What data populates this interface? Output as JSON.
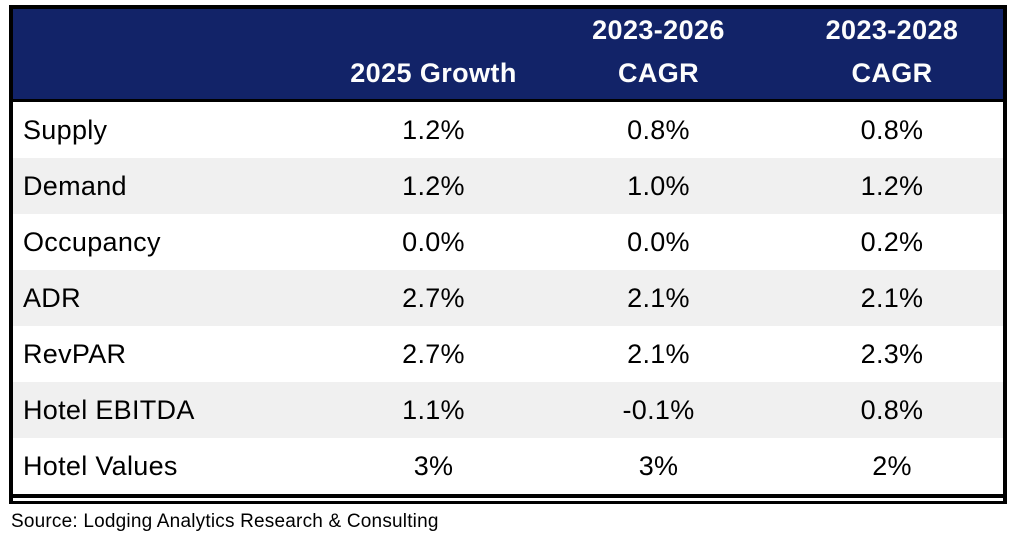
{
  "colors": {
    "header_bg": "#122368",
    "header_text": "#fdfdfd",
    "stripe_bg": "#f0f0f0",
    "border": "#000000",
    "text": "#000000"
  },
  "header": {
    "label_col": "",
    "col1": "2025 Growth",
    "col2_lines": [
      "2023-2026",
      "CAGR"
    ],
    "col3_lines": [
      "2023-2028",
      "CAGR"
    ]
  },
  "chart_data": {
    "type": "table",
    "columns": [
      "",
      "2025 Growth",
      "2023-2026 CAGR",
      "2023-2028 CAGR"
    ],
    "rows": [
      [
        "Supply",
        "1.2%",
        "0.8%",
        "0.8%"
      ],
      [
        "Demand",
        "1.2%",
        "1.0%",
        "1.2%"
      ],
      [
        "Occupancy",
        "0.0%",
        "0.0%",
        "0.2%"
      ],
      [
        "ADR",
        "2.7%",
        "2.1%",
        "2.1%"
      ],
      [
        "RevPAR",
        "2.7%",
        "2.1%",
        "2.3%"
      ],
      [
        "Hotel EBITDA",
        "1.1%",
        "-0.1%",
        "0.8%"
      ],
      [
        "Hotel Values",
        "3%",
        "3%",
        "2%"
      ]
    ],
    "title": "",
    "source": "Source: Lodging Analytics Research & Consulting"
  },
  "footer": {
    "source": "Source: Lodging Analytics Research & Consulting"
  }
}
